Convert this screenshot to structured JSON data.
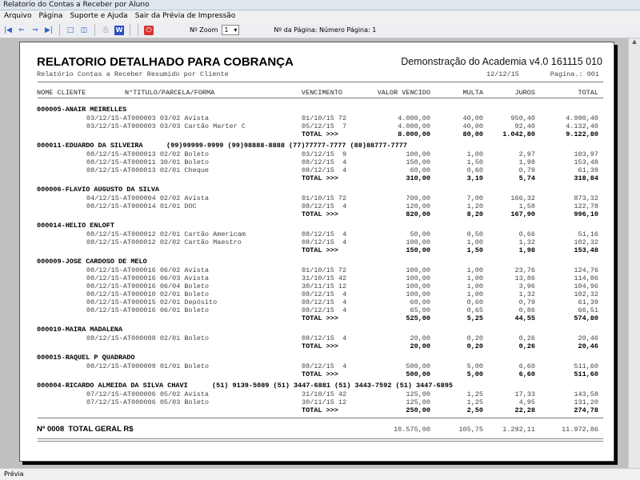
{
  "window": {
    "title": "Relatorio do Contas a Receber por Aluno"
  },
  "menu": [
    "Arquivo",
    "Página",
    "Suporte e Ajuda",
    "Sair da Prévia de Impressão"
  ],
  "toolbar": {
    "zoom_label": "Nº Zoom",
    "zoom_value": "1",
    "page_label": "Nº da Página: Número Página: 1"
  },
  "status": "Prévia",
  "report": {
    "title": "RELATORIO DETALHADO PARA COBRANÇA",
    "subtitle": "Relatório Contas a Receber Resumido por Cliente",
    "company": "Demonstração do Academia v4.0 161115 010",
    "date": "12/12/15",
    "page": "Pagina.: 001",
    "columns": [
      "NOME CLIENTE",
      "N°TITULO/PARCELA/FORMA",
      "VENCIMENTO",
      "VALOR VENCIDO",
      "MULTA",
      "JUROS",
      "TOTAL"
    ],
    "total_label": "TOTAL >>>",
    "groups": [
      {
        "name": "000005-ANAIR MEIRELLES",
        "phones": "",
        "items": [
          [
            "03/12/15-AT000003 03/02 Avista",
            "01/10/15 72",
            "4.000,00",
            "40,00",
            "950,40",
            "4.990,40"
          ],
          [
            "03/12/15-AT000003 03/03 Cartão Marter C",
            "05/12/15  7",
            "4.000,00",
            "40,00",
            "92,40",
            "4.132,40"
          ]
        ],
        "total": [
          "8.000,00",
          "80,00",
          "1.042,80",
          "9.122,80"
        ]
      },
      {
        "name": "000011-EDUARDO DA SILVEIRA",
        "phones": "(99)99999-9999 (99)98888-8888 (77)77777-7777 (88)88777-7777",
        "items": [
          [
            "08/12/15-AT000013 02/02 Boleto",
            "03/12/15  9",
            "100,00",
            "1,00",
            "2,97",
            "103,97"
          ],
          [
            "08/12/15-AT000011 30/01 Boleto",
            "08/12/15  4",
            "150,00",
            "1,50",
            "1,98",
            "153,48"
          ],
          [
            "08/12/15-AT000013 02/01 Cheque",
            "08/12/15  4",
            "60,00",
            "0,60",
            "0,79",
            "61,39"
          ]
        ],
        "total": [
          "310,00",
          "3,10",
          "5,74",
          "318,84"
        ]
      },
      {
        "name": "000006-FLAVIO AUGUSTO DA SILVA",
        "phones": "",
        "items": [
          [
            "04/12/15-AT000004 02/02 Avista",
            "01/10/15 72",
            "700,00",
            "7,00",
            "166,32",
            "873,32"
          ],
          [
            "08/12/15-AT000014 01/01 DOC",
            "08/12/15  4",
            "120,00",
            "1,20",
            "1,58",
            "122,78"
          ]
        ],
        "total": [
          "820,00",
          "8,20",
          "167,90",
          "996,10"
        ]
      },
      {
        "name": "000014-HELIO ENLOFT",
        "phones": "",
        "items": [
          [
            "08/12/15-AT000012 02/01 Cartão Americam",
            "08/12/15  4",
            "50,00",
            "0,50",
            "0,66",
            "51,16"
          ],
          [
            "08/12/15-AT000012 02/02 Cartão Maestro",
            "08/12/15  4",
            "100,00",
            "1,00",
            "1,32",
            "102,32"
          ]
        ],
        "total": [
          "150,00",
          "1,50",
          "1,98",
          "153,48"
        ]
      },
      {
        "name": "000009-JOSE CARDOSO DE MELO",
        "phones": "",
        "items": [
          [
            "08/12/15-AT000016 06/02 Avista",
            "01/10/15 72",
            "100,00",
            "1,00",
            "23,76",
            "124,76"
          ],
          [
            "08/12/15-AT000016 06/03 Avista",
            "31/10/15 42",
            "100,00",
            "1,00",
            "13,86",
            "114,86"
          ],
          [
            "08/12/15-AT000016 06/04 Boleto",
            "30/11/15 12",
            "100,00",
            "1,00",
            "3,96",
            "104,96"
          ],
          [
            "08/12/15-AT000010 02/01 Boleto",
            "08/12/15  4",
            "100,00",
            "1,00",
            "1,32",
            "102,32"
          ],
          [
            "08/12/15-AT000015 02/01 Depósito",
            "08/12/15  4",
            "60,00",
            "0,60",
            "0,79",
            "61,39"
          ],
          [
            "08/12/15-AT000016 06/01 Boleto",
            "08/12/15  4",
            "65,00",
            "0,65",
            "0,86",
            "66,51"
          ]
        ],
        "total": [
          "525,00",
          "5,25",
          "44,55",
          "574,80"
        ]
      },
      {
        "name": "000010-MAIRA MADALENA",
        "phones": "",
        "items": [
          [
            "08/12/15-AT000008 02/01 Boleto",
            "08/12/15  4",
            "20,00",
            "0,20",
            "0,26",
            "20,46"
          ]
        ],
        "total": [
          "20,00",
          "0,20",
          "0,26",
          "20,46"
        ]
      },
      {
        "name": "000015-RAQUEL P QUADRADO",
        "phones": "",
        "items": [
          [
            "08/12/15-AT000009 01/01 Boleto",
            "08/12/15  4",
            "500,00",
            "5,00",
            "6,60",
            "511,60"
          ]
        ],
        "total": [
          "500,00",
          "5,00",
          "6,60",
          "511,60"
        ]
      },
      {
        "name": "000004-RICARDO ALMEIDA DA SILVA CHAVI",
        "phones": "(51) 9139-5089 (51) 3447-6881 (51) 3443-7592 (51) 3447-6895",
        "items": [
          [
            "07/12/15-AT000006 05/02 Avista",
            "31/10/15 42",
            "125,00",
            "1,25",
            "17,33",
            "143,58"
          ],
          [
            "07/12/15-AT000006 05/03 Boleto",
            "30/11/15 12",
            "125,00",
            "1,25",
            "4,95",
            "131,20"
          ]
        ],
        "total": [
          "250,00",
          "2,50",
          "22,28",
          "274,78"
        ]
      }
    ],
    "grand_total": {
      "label": "Nº 0008  TOTAL GERAL R$",
      "values": [
        "10.575,00",
        "105,75",
        "1.292,11",
        "11.972,86"
      ]
    }
  }
}
